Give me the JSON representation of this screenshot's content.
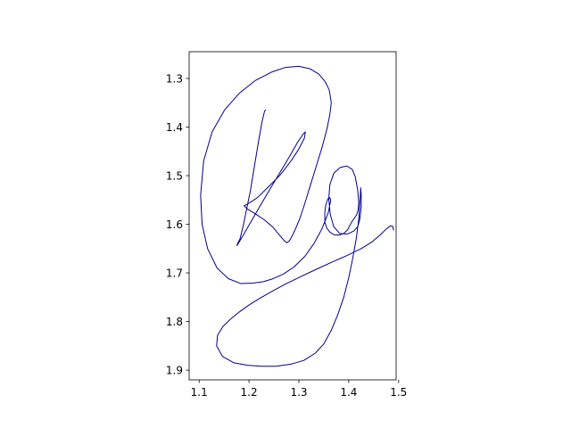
{
  "chart_data": {
    "type": "line",
    "title": "",
    "xlabel": "",
    "ylabel": "",
    "xlim": [
      1.08,
      1.495
    ],
    "ylim": [
      1.92,
      1.245
    ],
    "y_inverted": true,
    "grid": false,
    "legend": "none",
    "x_ticks": [
      1.1,
      1.2,
      1.3,
      1.4,
      1.5
    ],
    "x_tick_labels": [
      "1.1",
      "1.2",
      "1.3",
      "1.4",
      "1.5"
    ],
    "y_ticks": [
      1.3,
      1.4,
      1.5,
      1.6,
      1.7,
      1.8,
      1.9
    ],
    "y_tick_labels": [
      "1.3",
      "1.4",
      "1.5",
      "1.6",
      "1.7",
      "1.8",
      "1.9"
    ],
    "series": [
      {
        "color": "#00008b",
        "x": [
          1.233,
          1.231,
          1.226,
          1.219,
          1.211,
          1.203,
          1.195,
          1.188,
          1.182,
          1.177,
          1.176,
          1.18,
          1.191,
          1.206,
          1.224,
          1.243,
          1.263,
          1.281,
          1.297,
          1.309,
          1.313,
          1.311,
          1.3,
          1.284,
          1.263,
          1.24,
          1.217,
          1.198,
          1.19,
          1.196,
          1.212,
          1.231,
          1.248,
          1.261,
          1.27,
          1.276,
          1.281,
          1.286,
          1.293,
          1.302,
          1.311,
          1.323,
          1.335,
          1.347,
          1.356,
          1.362,
          1.365,
          1.361,
          1.353,
          1.34,
          1.322,
          1.3,
          1.274,
          1.245,
          1.213,
          1.181,
          1.151,
          1.126,
          1.109,
          1.103,
          1.106,
          1.117,
          1.136,
          1.159,
          1.184,
          1.208,
          1.229,
          1.248,
          1.268,
          1.29,
          1.312,
          1.33,
          1.346,
          1.359,
          1.364,
          1.362,
          1.358,
          1.354,
          1.352,
          1.352,
          1.356,
          1.363,
          1.372,
          1.382,
          1.391,
          1.398,
          1.402,
          1.406,
          1.411,
          1.416,
          1.419,
          1.42,
          1.418,
          1.413,
          1.407,
          1.396,
          1.383,
          1.37,
          1.362,
          1.36,
          1.363,
          1.37,
          1.382,
          1.397,
          1.41,
          1.418,
          1.422,
          1.425,
          1.425,
          1.424,
          1.423,
          1.42,
          1.415,
          1.408,
          1.4,
          1.39,
          1.378,
          1.365,
          1.35,
          1.333,
          1.31,
          1.283,
          1.254,
          1.225,
          1.197,
          1.17,
          1.147,
          1.135,
          1.137,
          1.148,
          1.163,
          1.181,
          1.2,
          1.222,
          1.246,
          1.273,
          1.303,
          1.334,
          1.366,
          1.397,
          1.425,
          1.447,
          1.463,
          1.476,
          1.484,
          1.488,
          1.49
        ],
        "y": [
          1.365,
          1.368,
          1.39,
          1.43,
          1.48,
          1.53,
          1.57,
          1.605,
          1.63,
          1.64,
          1.644,
          1.637,
          1.618,
          1.591,
          1.559,
          1.526,
          1.492,
          1.461,
          1.432,
          1.414,
          1.41,
          1.423,
          1.445,
          1.47,
          1.498,
          1.522,
          1.545,
          1.558,
          1.562,
          1.568,
          1.578,
          1.591,
          1.606,
          1.622,
          1.633,
          1.638,
          1.634,
          1.625,
          1.61,
          1.588,
          1.56,
          1.52,
          1.48,
          1.44,
          1.405,
          1.375,
          1.35,
          1.324,
          1.307,
          1.291,
          1.28,
          1.275,
          1.277,
          1.287,
          1.304,
          1.33,
          1.365,
          1.41,
          1.47,
          1.54,
          1.6,
          1.65,
          1.69,
          1.712,
          1.722,
          1.721,
          1.718,
          1.712,
          1.703,
          1.688,
          1.666,
          1.64,
          1.61,
          1.576,
          1.55,
          1.545,
          1.548,
          1.56,
          1.576,
          1.595,
          1.608,
          1.617,
          1.622,
          1.622,
          1.618,
          1.611,
          1.603,
          1.595,
          1.588,
          1.58,
          1.57,
          1.555,
          1.53,
          1.502,
          1.487,
          1.48,
          1.483,
          1.495,
          1.519,
          1.548,
          1.58,
          1.605,
          1.619,
          1.62,
          1.614,
          1.605,
          1.59,
          1.565,
          1.54,
          1.525,
          1.545,
          1.59,
          1.63,
          1.67,
          1.71,
          1.75,
          1.786,
          1.818,
          1.846,
          1.865,
          1.88,
          1.888,
          1.892,
          1.892,
          1.89,
          1.885,
          1.872,
          1.85,
          1.828,
          1.81,
          1.795,
          1.78,
          1.766,
          1.752,
          1.738,
          1.723,
          1.708,
          1.693,
          1.678,
          1.664,
          1.65,
          1.636,
          1.622,
          1.609,
          1.603,
          1.604,
          1.612
        ]
      }
    ]
  }
}
